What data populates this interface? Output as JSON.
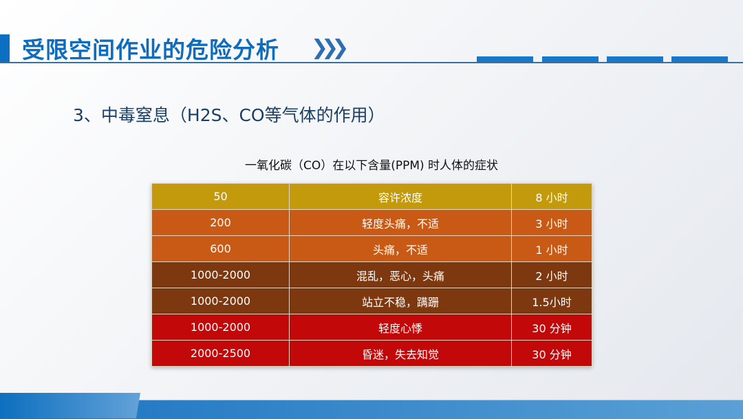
{
  "header": {
    "title": "受限空间作业的危险分析",
    "chevron_icon": "double-chevron-right"
  },
  "subtitle": "3、中毒窒息（H2S、CO等气体的作用）",
  "table": {
    "caption": "一氧化碳（CO）在以下含量(PPM) 时人体的症状",
    "rows": [
      {
        "ppm": "50",
        "symptom": "容许浓度",
        "time": "8 小时",
        "color": "#c39a0c"
      },
      {
        "ppm": "200",
        "symptom": "轻度头痛，不适",
        "time": "3 小时",
        "color": "#c95a16"
      },
      {
        "ppm": "600",
        "symptom": "头痛，不适",
        "time": "1 小时",
        "color": "#c95a16"
      },
      {
        "ppm": "1000-2000",
        "symptom": "混乱，恶心，头痛",
        "time": "2 小时",
        "color": "#7e3810"
      },
      {
        "ppm": "1000-2000",
        "symptom": "站立不稳，蹒跚",
        "time": "1.5小时",
        "color": "#7e3810"
      },
      {
        "ppm": "1000-2000",
        "symptom": "轻度心悸",
        "time": "30 分钟",
        "color": "#c20808"
      },
      {
        "ppm": "2000-2500",
        "symptom": "昏迷，失去知觉",
        "time": "30 分钟",
        "color": "#c20808"
      }
    ]
  }
}
